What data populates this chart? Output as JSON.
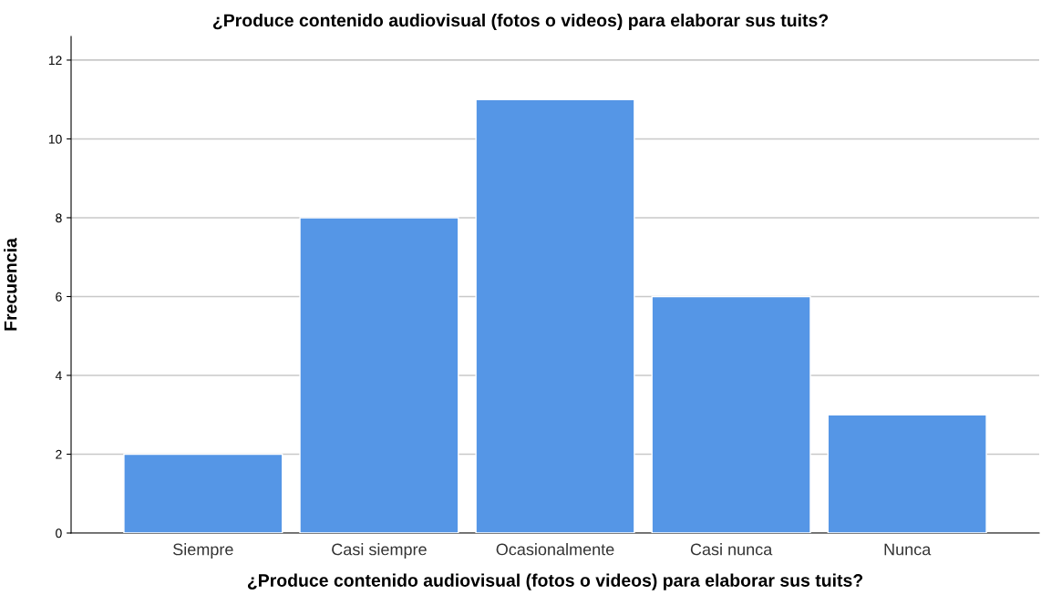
{
  "chart_data": {
    "type": "bar",
    "title": "¿Produce contenido audiovisual (fotos o videos) para elaborar sus tuits?",
    "xlabel": "¿Produce contenido audiovisual (fotos o videos) para elaborar sus tuits?",
    "ylabel": "Frecuencia",
    "categories": [
      "Siempre",
      "Casi siempre",
      "Ocasionalmente",
      "Casi nunca",
      "Nunca"
    ],
    "values": [
      2,
      8,
      11,
      6,
      3
    ],
    "color": "#5596e6",
    "ylim": [
      0,
      12.6
    ],
    "yticks": [
      0,
      2,
      4,
      6,
      8,
      10,
      12
    ],
    "grid": "y"
  }
}
